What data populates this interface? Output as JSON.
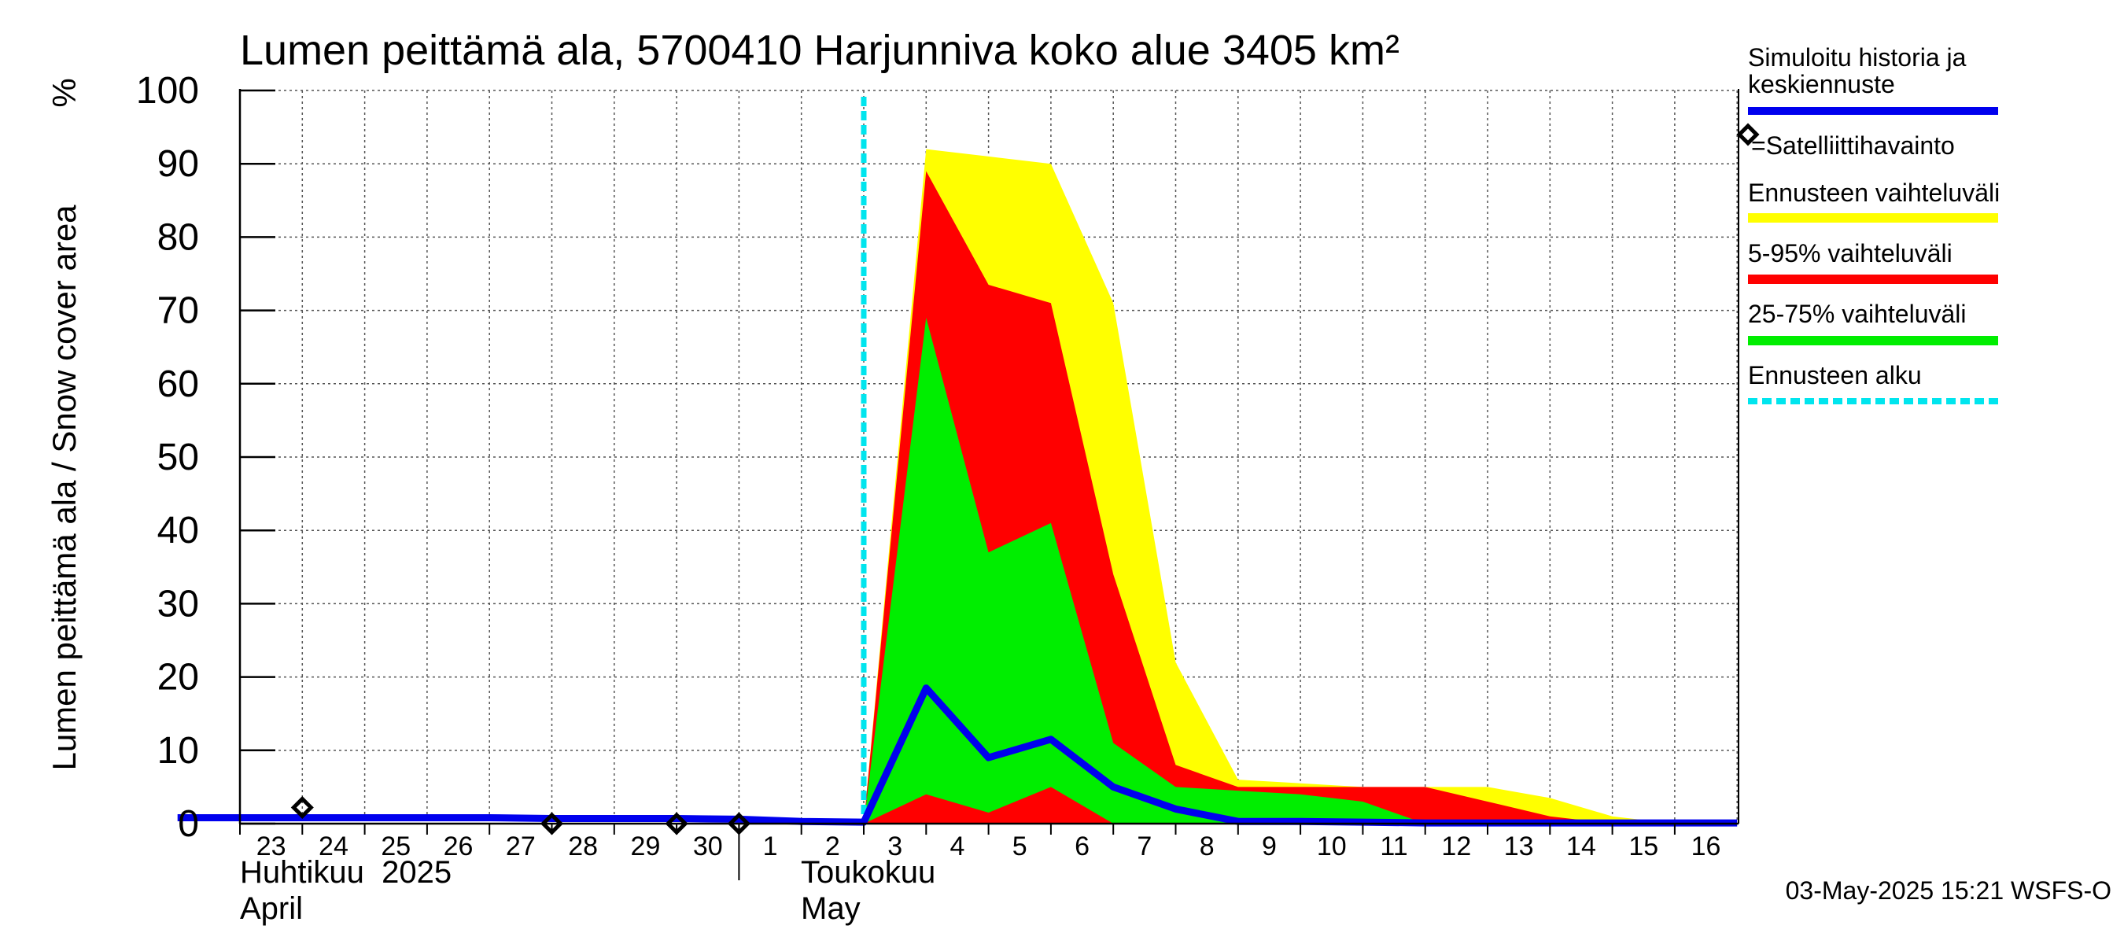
{
  "chart_data": {
    "type": "area",
    "title": "Lumen peittämä ala, 5700410 Harjunniva koko alue 3405 km²",
    "ylabel": "Lumen peittämä ala / Snow cover area",
    "yunit": "%",
    "ylim": [
      0,
      100
    ],
    "yticks": [
      0,
      10,
      20,
      30,
      40,
      50,
      60,
      70,
      80,
      90,
      100
    ],
    "x_days": [
      "23",
      "24",
      "25",
      "26",
      "27",
      "28",
      "29",
      "30",
      "1",
      "2",
      "3",
      "4",
      "5",
      "6",
      "7",
      "8",
      "9",
      "10",
      "11",
      "12",
      "13",
      "14",
      "15",
      "16"
    ],
    "month_labels": [
      {
        "fi": "Huhtikuu  2025",
        "en": "April"
      },
      {
        "fi": "Toukokuu",
        "en": "May"
      }
    ],
    "grid": true,
    "forecast_start": "2025-05-03",
    "legend": [
      {
        "label": "Simuloitu historia ja keskiennuste",
        "color": "#0000ee",
        "style": "line"
      },
      {
        "label": "=Satelliittihavainto",
        "color": "#000000",
        "style": "diamond"
      },
      {
        "label": "Ennusteen vaihteluväli",
        "color": "#ffff00",
        "style": "band"
      },
      {
        "label": "5-95% vaihteluväli",
        "color": "#ff0000",
        "style": "band"
      },
      {
        "label": "25-75% vaihteluväli",
        "color": "#00ee00",
        "style": "band"
      },
      {
        "label": "Ennusteen alku",
        "color": "#00e5ee",
        "style": "dashed"
      }
    ],
    "bands": {
      "x": [
        "2025-05-03",
        "2025-05-04",
        "2025-05-05",
        "2025-05-06",
        "2025-05-07",
        "2025-05-08",
        "2025-05-09",
        "2025-05-10",
        "2025-05-11",
        "2025-05-12",
        "2025-05-13",
        "2025-05-14",
        "2025-05-15",
        "2025-05-16",
        "2025-05-17"
      ],
      "full_range": {
        "color": "#ffff00",
        "upper": [
          0,
          92,
          91,
          90,
          71,
          22,
          6,
          5.5,
          5,
          5,
          5,
          3.5,
          1,
          0,
          0
        ],
        "lower": [
          0,
          0,
          0,
          0,
          0,
          0,
          0,
          0,
          0,
          0,
          0,
          0,
          0,
          0,
          0
        ]
      },
      "p5_95": {
        "color": "#ff0000",
        "upper": [
          0,
          89,
          73.5,
          71,
          34,
          8,
          5,
          5,
          5,
          5,
          3,
          1,
          0,
          0,
          0
        ],
        "lower": [
          0,
          0,
          0,
          0,
          0,
          0,
          0,
          0,
          0,
          0,
          0,
          0,
          0,
          0,
          0
        ]
      },
      "p25_75": {
        "color": "#00ee00",
        "upper": [
          0,
          69,
          37,
          41,
          11,
          5,
          4.5,
          4,
          3,
          0,
          0,
          0,
          0,
          0,
          0
        ],
        "lower": [
          0,
          4,
          1.5,
          5,
          0,
          0,
          0,
          0,
          0,
          0,
          0,
          0,
          0,
          0,
          0
        ]
      }
    },
    "series": [
      {
        "name": "Simuloitu historia ja keskiennuste",
        "color": "#0000ee",
        "x": [
          "2025-04-22",
          "2025-04-23",
          "2025-04-24",
          "2025-04-25",
          "2025-04-26",
          "2025-04-27",
          "2025-04-28",
          "2025-04-29",
          "2025-04-30",
          "2025-05-01",
          "2025-05-02",
          "2025-05-03",
          "2025-05-04",
          "2025-05-05",
          "2025-05-06",
          "2025-05-07",
          "2025-05-08",
          "2025-05-09",
          "2025-05-10",
          "2025-05-11",
          "2025-05-12",
          "2025-05-13",
          "2025-05-14",
          "2025-05-15",
          "2025-05-16",
          "2025-05-17"
        ],
        "y": [
          0.8,
          0.8,
          0.8,
          0.8,
          0.8,
          0.8,
          0.7,
          0.7,
          0.7,
          0.6,
          0.3,
          0.2,
          18.5,
          9,
          11.5,
          5,
          2,
          0.3,
          0.3,
          0.2,
          0.1,
          0.1,
          0.1,
          0.1,
          0.1,
          0.1
        ]
      }
    ],
    "satellite_observations": [
      {
        "x": "2025-04-24",
        "y": 2.2
      },
      {
        "x": "2025-04-28",
        "y": 0
      },
      {
        "x": "2025-04-30",
        "y": 0
      },
      {
        "x": "2025-05-01",
        "y": 0
      }
    ],
    "footer": "03-May-2025 15:21 WSFS-O"
  }
}
